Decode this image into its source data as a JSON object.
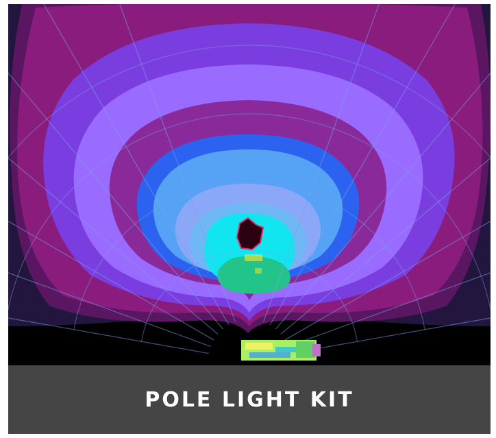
{
  "product_card": {
    "title": "POLE LIGHT KIT"
  },
  "photometric_image": {
    "colors": {
      "background": "#000000",
      "outer_edge": "#22163f",
      "dark_purple": "#5a1660",
      "magenta": "#8a1c7e",
      "violet": "#7a3ee0",
      "lilac": "#9a6bff",
      "royal_blue": "#2b62f0",
      "sky_blue": "#56a2f5",
      "pale_blue": "#8aa8f7",
      "cyan": "#11e6f0",
      "teal": "#23c48a",
      "hotspot": "#2b0010",
      "grid_line": "#7aa0e8",
      "fixture": "#a8f060",
      "caption_bg": "#454545"
    }
  }
}
